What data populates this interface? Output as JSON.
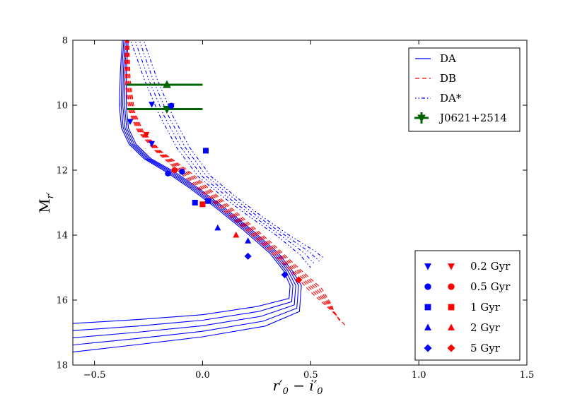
{
  "chart_data": {
    "type": "line",
    "title": "",
    "xlabel": "r'_0 - i'_0",
    "ylabel": "M_r'",
    "xlim": [
      -0.6,
      1.5
    ],
    "ylim": [
      18,
      8
    ],
    "xticks": [
      -0.5,
      0.0,
      0.5,
      1.0,
      1.5
    ],
    "xtick_labels": [
      "−0.5",
      "0.0",
      "0.5",
      "1.0",
      "1.5"
    ],
    "yticks": [
      8,
      10,
      12,
      14,
      16,
      18
    ],
    "ytick_labels": [
      "8",
      "10",
      "12",
      "14",
      "16",
      "18"
    ],
    "colors": {
      "DA": "#0000ff",
      "DB": "#ff0000",
      "DAstar": "#0000ff",
      "J0621": "#006400"
    },
    "series": [
      {
        "name": "DA",
        "style": "solid",
        "color": "#0000ff",
        "curves": [
          [
            [
              -0.3705,
              7.95
            ],
            [
              -0.38,
              8.9
            ],
            [
              -0.385,
              10.0
            ],
            [
              -0.375,
              10.7
            ],
            [
              -0.34,
              11.2
            ],
            [
              -0.27,
              11.65
            ],
            [
              -0.17,
              12.05
            ],
            [
              -0.06,
              12.55
            ],
            [
              0.06,
              13.15
            ],
            [
              0.19,
              13.85
            ],
            [
              0.31,
              14.55
            ],
            [
              0.375,
              15.1
            ],
            [
              0.405,
              15.55
            ],
            [
              0.4,
              15.95
            ],
            [
              0.25,
              16.2
            ],
            [
              0.0,
              16.45
            ],
            [
              -0.3,
              16.6
            ],
            [
              -0.6,
              16.72
            ]
          ],
          [
            [
              -0.3637,
              7.95
            ],
            [
              -0.373,
              8.9
            ],
            [
              -0.377,
              10.0
            ],
            [
              -0.367,
              10.7
            ],
            [
              -0.332,
              11.2
            ],
            [
              -0.262,
              11.65
            ],
            [
              -0.16,
              12.05
            ],
            [
              -0.05,
              12.55
            ],
            [
              0.07,
              13.15
            ],
            [
              0.2,
              13.85
            ],
            [
              0.32,
              14.55
            ],
            [
              0.385,
              15.1
            ],
            [
              0.418,
              15.55
            ],
            [
              0.412,
              16.05
            ],
            [
              0.26,
              16.35
            ],
            [
              0.0,
              16.62
            ],
            [
              -0.3,
              16.8
            ],
            [
              -0.6,
              16.94
            ]
          ],
          [
            [
              -0.3569,
              7.95
            ],
            [
              -0.366,
              8.9
            ],
            [
              -0.369,
              10.0
            ],
            [
              -0.359,
              10.7
            ],
            [
              -0.324,
              11.2
            ],
            [
              -0.254,
              11.65
            ],
            [
              -0.15,
              12.05
            ],
            [
              -0.04,
              12.55
            ],
            [
              0.08,
              13.15
            ],
            [
              0.21,
              13.85
            ],
            [
              0.33,
              14.55
            ],
            [
              0.395,
              15.1
            ],
            [
              0.431,
              15.55
            ],
            [
              0.424,
              16.15
            ],
            [
              0.27,
              16.5
            ],
            [
              0.0,
              16.79
            ],
            [
              -0.3,
              16.99
            ],
            [
              -0.6,
              17.16
            ]
          ],
          [
            [
              -0.3501,
              7.95
            ],
            [
              -0.359,
              8.9
            ],
            [
              -0.361,
              10.0
            ],
            [
              -0.351,
              10.7
            ],
            [
              -0.316,
              11.2
            ],
            [
              -0.246,
              11.65
            ],
            [
              -0.14,
              12.05
            ],
            [
              -0.03,
              12.55
            ],
            [
              0.09,
              13.15
            ],
            [
              0.22,
              13.85
            ],
            [
              0.34,
              14.55
            ],
            [
              0.405,
              15.1
            ],
            [
              0.444,
              15.55
            ],
            [
              0.436,
              16.25
            ],
            [
              0.28,
              16.65
            ],
            [
              0.0,
              16.96
            ],
            [
              -0.3,
              17.18
            ],
            [
              -0.6,
              17.38
            ]
          ],
          [
            [
              -0.3433,
              7.95
            ],
            [
              -0.352,
              8.9
            ],
            [
              -0.353,
              10.0
            ],
            [
              -0.343,
              10.7
            ],
            [
              -0.308,
              11.2
            ],
            [
              -0.238,
              11.65
            ],
            [
              -0.13,
              12.05
            ],
            [
              -0.02,
              12.55
            ],
            [
              0.1,
              13.15
            ],
            [
              0.23,
              13.85
            ],
            [
              0.35,
              14.55
            ],
            [
              0.415,
              15.1
            ],
            [
              0.457,
              15.55
            ],
            [
              0.448,
              16.35
            ],
            [
              0.29,
              16.8
            ],
            [
              0.0,
              17.13
            ],
            [
              -0.3,
              17.37
            ],
            [
              -0.6,
              17.6
            ]
          ]
        ]
      },
      {
        "name": "DB",
        "style": "dashed",
        "color": "#ff0000",
        "curves": [
          [
            [
              -0.357,
              7.95
            ],
            [
              -0.36,
              9.2
            ],
            [
              -0.34,
              10.2
            ],
            [
              -0.3,
              10.8
            ],
            [
              -0.22,
              11.4
            ],
            [
              -0.1,
              12.1
            ],
            [
              0.02,
              12.8
            ],
            [
              0.15,
              13.55
            ],
            [
              0.28,
              14.3
            ],
            [
              0.4,
              15.05
            ],
            [
              0.5,
              15.75
            ],
            [
              0.6,
              16.35
            ],
            [
              0.66,
              16.78
            ]
          ],
          [
            [
              -0.354,
              7.95
            ],
            [
              -0.355,
              9.2
            ],
            [
              -0.335,
              10.2
            ],
            [
              -0.295,
              10.8
            ],
            [
              -0.215,
              11.4
            ],
            [
              -0.09,
              12.1
            ],
            [
              0.03,
              12.8
            ],
            [
              0.16,
              13.55
            ],
            [
              0.29,
              14.3
            ],
            [
              0.41,
              15.05
            ],
            [
              0.51,
              15.72
            ],
            [
              0.6,
              16.32
            ],
            [
              0.64,
              16.68
            ]
          ],
          [
            [
              -0.351,
              7.95
            ],
            [
              -0.35,
              9.2
            ],
            [
              -0.33,
              10.2
            ],
            [
              -0.29,
              10.8
            ],
            [
              -0.21,
              11.4
            ],
            [
              -0.08,
              12.1
            ],
            [
              0.04,
              12.8
            ],
            [
              0.17,
              13.55
            ],
            [
              0.3,
              14.3
            ],
            [
              0.42,
              15.05
            ],
            [
              0.52,
              15.7
            ],
            [
              0.6,
              16.28
            ],
            [
              0.63,
              16.58
            ]
          ],
          [
            [
              -0.348,
              7.95
            ],
            [
              -0.345,
              9.2
            ],
            [
              -0.325,
              10.2
            ],
            [
              -0.285,
              10.8
            ],
            [
              -0.205,
              11.4
            ],
            [
              -0.07,
              12.1
            ],
            [
              0.05,
              12.8
            ],
            [
              0.18,
              13.55
            ],
            [
              0.31,
              14.3
            ],
            [
              0.43,
              15.05
            ],
            [
              0.53,
              15.68
            ],
            [
              0.6,
              16.25
            ],
            [
              0.62,
              16.48
            ]
          ],
          [
            [
              -0.345,
              7.95
            ],
            [
              -0.34,
              9.2
            ],
            [
              -0.32,
              10.2
            ],
            [
              -0.28,
              10.8
            ],
            [
              -0.2,
              11.4
            ],
            [
              -0.06,
              12.1
            ],
            [
              0.06,
              12.8
            ],
            [
              0.19,
              13.55
            ],
            [
              0.32,
              14.3
            ],
            [
              0.44,
              15.05
            ],
            [
              0.54,
              15.66
            ],
            [
              0.6,
              16.22
            ],
            [
              0.61,
              16.38
            ]
          ],
          [
            [
              -0.342,
              7.95
            ],
            [
              -0.335,
              9.2
            ],
            [
              -0.315,
              10.2
            ],
            [
              -0.275,
              10.8
            ],
            [
              -0.195,
              11.4
            ],
            [
              -0.05,
              12.1
            ],
            [
              0.07,
              12.8
            ],
            [
              0.2,
              13.55
            ],
            [
              0.33,
              14.3
            ],
            [
              0.45,
              15.05
            ],
            [
              0.55,
              15.64
            ],
            [
              0.6,
              16.19
            ],
            [
              0.6,
              16.28
            ]
          ]
        ]
      },
      {
        "name": "DA*",
        "style": "dashdot",
        "color": "#0000ff",
        "curves": [
          [
            [
              -0.33,
              8.05
            ],
            [
              -0.27,
              9.2
            ],
            [
              -0.2,
              10.3
            ],
            [
              -0.12,
              11.3
            ],
            [
              -0.02,
              12.2
            ],
            [
              0.1,
              12.85
            ],
            [
              0.22,
              13.45
            ],
            [
              0.34,
              14.0
            ],
            [
              0.45,
              14.6
            ],
            [
              0.5,
              15.0
            ]
          ],
          [
            [
              -0.31,
              8.05
            ],
            [
              -0.25,
              9.2
            ],
            [
              -0.18,
              10.3
            ],
            [
              -0.1,
              11.3
            ],
            [
              0.0,
              12.2
            ],
            [
              0.12,
              12.85
            ],
            [
              0.24,
              13.45
            ],
            [
              0.36,
              14.0
            ],
            [
              0.47,
              14.55
            ],
            [
              0.52,
              14.9
            ]
          ],
          [
            [
              -0.29,
              8.05
            ],
            [
              -0.23,
              9.2
            ],
            [
              -0.16,
              10.3
            ],
            [
              -0.08,
              11.3
            ],
            [
              0.02,
              12.2
            ],
            [
              0.14,
              12.85
            ],
            [
              0.26,
              13.45
            ],
            [
              0.38,
              14.0
            ],
            [
              0.49,
              14.5
            ],
            [
              0.54,
              14.8
            ]
          ],
          [
            [
              -0.27,
              8.05
            ],
            [
              -0.21,
              9.2
            ],
            [
              -0.14,
              10.3
            ],
            [
              -0.06,
              11.3
            ],
            [
              0.04,
              12.2
            ],
            [
              0.16,
              12.85
            ],
            [
              0.28,
              13.45
            ],
            [
              0.4,
              14.0
            ],
            [
              0.51,
              14.45
            ],
            [
              0.56,
              14.7
            ]
          ]
        ]
      },
      {
        "name": "J0621+2514",
        "style": "errorbar",
        "color": "#006400",
        "points": [
          {
            "x": -0.165,
            "y": 9.37,
            "xerr_low": -0.35,
            "xerr_high": 0.0,
            "marker": "triangle-up"
          },
          {
            "x": -0.165,
            "y": 10.12,
            "xerr_low": -0.35,
            "xerr_high": 0.0,
            "marker": "triangle-down"
          }
        ]
      }
    ],
    "age_markers": [
      {
        "age": "0.2 Gyr",
        "marker": "triangle-down",
        "DA": [
          [
            -0.335,
            10.5
          ],
          [
            -0.235,
            9.97
          ],
          [
            -0.145,
            10.02
          ],
          [
            -0.235,
            11.18
          ]
        ],
        "DB": [
          [
            -0.26,
            10.9
          ]
        ]
      },
      {
        "age": "0.5 Gyr",
        "marker": "circle",
        "DA": [
          [
            -0.16,
            12.1
          ],
          [
            -0.095,
            12.05
          ],
          [
            -0.145,
            10.02
          ]
        ],
        "DB": [
          [
            -0.13,
            12.0
          ]
        ]
      },
      {
        "age": "1 Gyr",
        "marker": "square",
        "DA": [
          [
            -0.035,
            13.0
          ],
          [
            0.025,
            12.95
          ],
          [
            0.015,
            11.4
          ]
        ],
        "DB": [
          [
            0.0,
            13.05
          ]
        ]
      },
      {
        "age": "2 Gyr",
        "marker": "triangle-up",
        "DA": [
          [
            0.07,
            13.78
          ],
          [
            0.21,
            14.18
          ]
        ],
        "DB": [
          [
            0.155,
            14.0
          ]
        ]
      },
      {
        "age": "5 Gyr",
        "marker": "diamond",
        "DA": [
          [
            0.21,
            14.65
          ],
          [
            0.38,
            15.22
          ]
        ],
        "DB": [
          [
            0.445,
            15.38
          ]
        ]
      }
    ],
    "legend_lines": {
      "placement": "top-right",
      "entries": [
        {
          "label": "DA",
          "style": "solid",
          "color": "#0000ff"
        },
        {
          "label": "DB",
          "style": "dashed",
          "color": "#ff0000"
        },
        {
          "label": "DA*",
          "style": "dashdot",
          "color": "#0000ff"
        },
        {
          "label": "J0621+2514",
          "style": "errorbar",
          "color": "#006400"
        }
      ]
    },
    "legend_markers": {
      "placement": "bottom-right",
      "entries": [
        {
          "label": "0.2 Gyr",
          "marker": "triangle-down"
        },
        {
          "label": "0.5 Gyr",
          "marker": "circle"
        },
        {
          "label": "1 Gyr",
          "marker": "square"
        },
        {
          "label": "2 Gyr",
          "marker": "triangle-up"
        },
        {
          "label": "5 Gyr",
          "marker": "diamond"
        }
      ]
    }
  }
}
